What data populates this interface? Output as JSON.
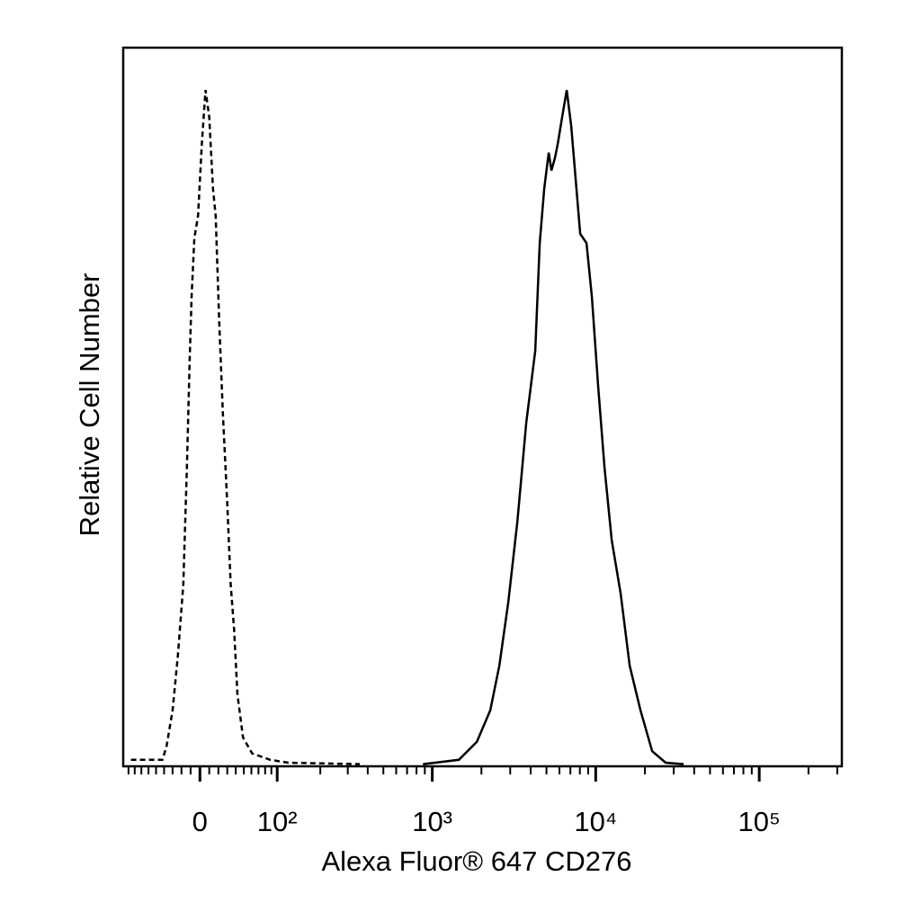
{
  "chart_data": {
    "type": "line",
    "xlabel": "Alexa Fluor® 647 CD276",
    "ylabel": "Relative Cell Number",
    "xscale": "biexponential",
    "xlim": [
      -99,
      320000
    ],
    "ylim": [
      0,
      100
    ],
    "xticks": [
      0,
      {
        "value": 100,
        "label": "10²"
      },
      {
        "value": 1000,
        "label": "10³"
      },
      {
        "value": 10000,
        "label": "10⁴"
      },
      {
        "value": 100000,
        "label": "10⁵"
      }
    ],
    "xminorticks": [
      -90,
      -80,
      -70,
      -60,
      -50,
      -40,
      -30,
      -20,
      -10,
      10,
      20,
      30,
      40,
      50,
      60,
      70,
      80,
      90,
      200,
      300,
      400,
      500,
      600,
      700,
      800,
      900,
      2000,
      3000,
      4000,
      5000,
      6000,
      7000,
      8000,
      9000,
      20000,
      30000,
      40000,
      50000,
      60000,
      70000,
      80000,
      90000,
      200000,
      300000
    ],
    "series": [
      {
        "color": "#000000",
        "linestyle": "dashed",
        "x": [
          -86,
          -42,
          -37,
          -30,
          -24,
          -18,
          -14,
          -11,
          -9,
          -6,
          -2,
          2,
          6,
          10,
          14,
          17,
          21,
          25,
          30,
          34,
          38,
          42,
          49,
          61,
          88,
          121,
          357
        ],
        "values": [
          0.9,
          0.9,
          2.8,
          7.8,
          15.3,
          25.3,
          41.6,
          56.6,
          65.3,
          73.5,
          76.6,
          86.6,
          94.1,
          90.4,
          80.4,
          76.6,
          61.6,
          49.1,
          36.5,
          25.3,
          19,
          10,
          4,
          1.8,
          0.9,
          0.5,
          0.3
        ]
      },
      {
        "color": "#000000",
        "linestyle": "solid",
        "x": [
          877,
          1455,
          1875,
          2266,
          2573,
          2920,
          3315,
          3762,
          4270,
          4548,
          4845,
          5160,
          5360,
          5640,
          5860,
          6240,
          6650,
          7080,
          7550,
          8040,
          8780,
          9480,
          10360,
          11310,
          12520,
          14210,
          16130,
          18780,
          22140,
          26770,
          34470
        ],
        "values": [
          0.3,
          0.9,
          3.4,
          7.8,
          14,
          22.8,
          34,
          47.8,
          57.8,
          72.8,
          80.4,
          85.4,
          82.9,
          84.7,
          86.6,
          90.4,
          94.1,
          89.1,
          81.6,
          74.1,
          72.8,
          65.3,
          52.8,
          41.6,
          31.5,
          24,
          14,
          7.8,
          2.1,
          0.5,
          0.3
        ]
      }
    ]
  }
}
